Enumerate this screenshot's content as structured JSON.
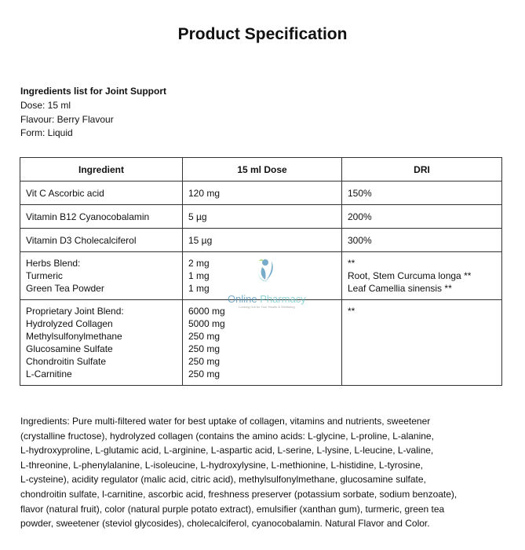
{
  "title": "Product Specification",
  "info": {
    "heading": "Ingredients list for Joint Support",
    "dose": "Dose: 15 ml",
    "flavour": "Flavour: Berry Flavour",
    "form": "Form: Liquid"
  },
  "table": {
    "headers": [
      "Ingredient",
      "15 ml Dose",
      "DRI"
    ],
    "rows": [
      {
        "ingredient": [
          "Vit C Ascorbic acid"
        ],
        "dose": [
          "120 mg"
        ],
        "dri": [
          "150%"
        ]
      },
      {
        "ingredient": [
          "Vitamin B12 Cyanocobalamin"
        ],
        "dose": [
          "5 µg"
        ],
        "dri": [
          "200%"
        ]
      },
      {
        "ingredient": [
          "Vitamin D3 Cholecalciferol"
        ],
        "dose": [
          "15 µg"
        ],
        "dri": [
          "300%"
        ]
      },
      {
        "ingredient": [
          "Herbs Blend:",
          "Turmeric",
          "Green Tea Powder"
        ],
        "dose": [
          "2 mg",
          "1 mg",
          "1 mg"
        ],
        "dri": [
          "**",
          "Root, Stem Curcuma longa **",
          "Leaf Camellia sinensis **"
        ]
      },
      {
        "ingredient": [
          "Proprietary Joint Blend:",
          "Hydrolyzed Collagen",
          "Methylsulfonylmethane",
          "Glucosamine Sulfate",
          "Chondroitin Sulfate",
          "L-Carnitine"
        ],
        "dose": [
          "6000 mg",
          "5000 mg",
          "250 mg",
          "250 mg",
          "250 mg",
          "250 mg"
        ],
        "dri": [
          "**"
        ]
      }
    ]
  },
  "watermark": {
    "name1": "Online",
    "name2": "Pharmacy",
    "tagline": "Looking Out for Your Health & Wellbeing"
  },
  "ingredients_text": [
    "Ingredients: Pure multi-filtered water for best uptake of collagen, vitamins and nutrients, sweetener",
    "(crystalline fructose), hydrolyzed collagen (contains the amino acids:  L-glycine, L-proline, L-alanine,",
    "L-hydroxyproline, L-glutamic acid, L-arginine, L-aspartic acid, L-serine, L-lysine, L-leucine, L-valine,",
    "L-threonine, L-phenylalanine, L-isoleucine, L-hydroxylysine, L-methionine, L-histidine, L-tyrosine,",
    "L-cysteine), acidity regulator (malic acid, citric acid), methylsulfonylmethane, glucosamine sulfate,",
    "chondroitin sulfate, l-carnitine, ascorbic acid, freshness preserver (potassium sorbate, sodium benzoate),",
    "flavor (natural fruit), color (natural purple potato extract), emulsifier (xanthan gum), turmeric, green tea",
    "powder, sweetener (steviol glycosides), cholecalciferol, cyanocobalamin. Natural Flavor and Color."
  ]
}
